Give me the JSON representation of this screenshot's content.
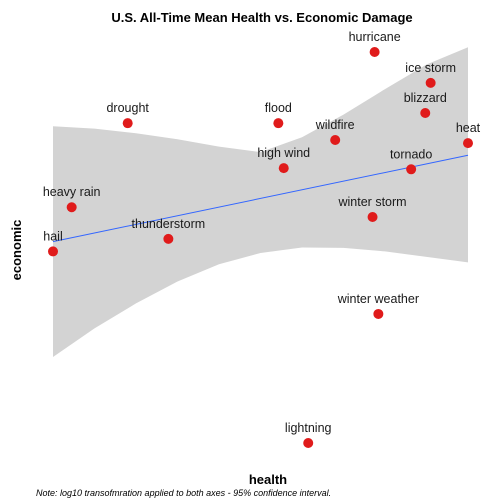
{
  "chart_data": {
    "type": "scatter",
    "title": "U.S. All-Time Mean Health vs. Economic Damage",
    "xlabel": "health",
    "ylabel": "economic",
    "caption": "Note: log10 transofmration applied to both axes - 95% confidence interval.",
    "grid": false,
    "axis_ticks_shown": false,
    "x_range": [
      0,
      100
    ],
    "y_range": [
      0,
      100
    ],
    "colors": {
      "point": "#e01b1b",
      "fit_line": "#3366ff",
      "ribbon": "#d3d3d3"
    },
    "points": [
      {
        "label": "hail",
        "x": 0.0,
        "y": 49.0
      },
      {
        "label": "heavy rain",
        "x": 4.5,
        "y": 60.3
      },
      {
        "label": "thunderstorm",
        "x": 27.8,
        "y": 52.2
      },
      {
        "label": "drought",
        "x": 18.0,
        "y": 81.8
      },
      {
        "label": "flood",
        "x": 54.3,
        "y": 81.8
      },
      {
        "label": "high wind",
        "x": 55.6,
        "y": 70.3
      },
      {
        "label": "wildfire",
        "x": 68.0,
        "y": 77.5
      },
      {
        "label": "hurricane",
        "x": 77.5,
        "y": 100.0
      },
      {
        "label": "ice storm",
        "x": 91.0,
        "y": 92.1
      },
      {
        "label": "blizzard",
        "x": 89.7,
        "y": 84.4
      },
      {
        "label": "tornado",
        "x": 86.3,
        "y": 70.0
      },
      {
        "label": "heat",
        "x": 100.0,
        "y": 76.7
      },
      {
        "label": "winter storm",
        "x": 77.0,
        "y": 57.8
      },
      {
        "label": "winter weather",
        "x": 78.4,
        "y": 33.0
      },
      {
        "label": "lightning",
        "x": 61.5,
        "y": 0.0
      }
    ],
    "fit": {
      "type": "linear",
      "x": [
        0,
        100
      ],
      "y": [
        51.5,
        73.6
      ]
    },
    "confidence_band": {
      "level": 0.95,
      "x": [
        0,
        10,
        20,
        30,
        40,
        50,
        60,
        70,
        80,
        90,
        100
      ],
      "lower": [
        22.0,
        29.3,
        35.7,
        41.3,
        45.7,
        48.6,
        50.0,
        49.9,
        49.0,
        47.6,
        46.2
      ],
      "upper": [
        81.0,
        80.4,
        79.2,
        77.7,
        75.8,
        74.4,
        78.2,
        84.0,
        90.5,
        96.8,
        101.2
      ]
    }
  }
}
